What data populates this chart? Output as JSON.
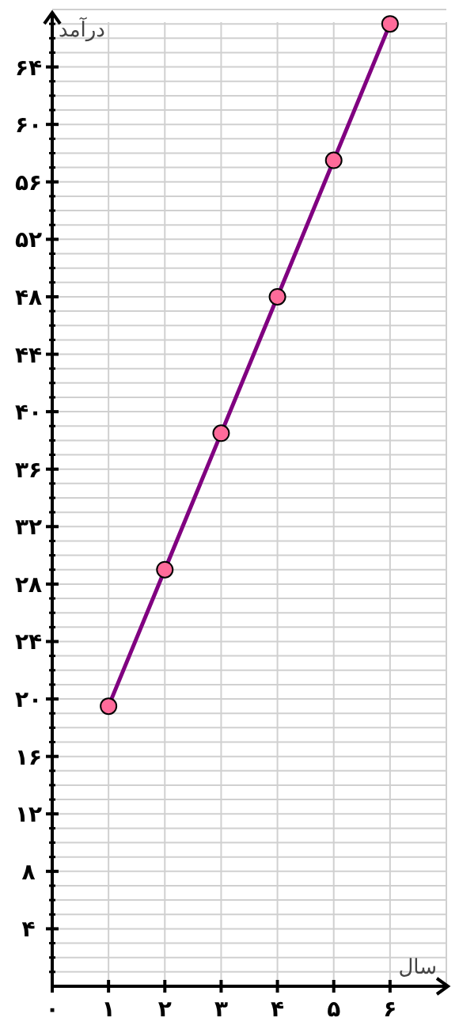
{
  "chart_data": {
    "type": "line",
    "xlabel": "سال",
    "ylabel": "درآمد",
    "x": [
      1,
      2,
      3,
      4,
      5,
      6
    ],
    "series": [
      {
        "color": "#800080",
        "colors": [
          "#ff6b9a",
          "#ff6b9a",
          "#ff6b9a",
          "#ff6b9a",
          "#ff6b9a",
          "#ff6b9a"
        ],
        "values": [
          19.5,
          29,
          38.5,
          48,
          57.5,
          67
        ]
      }
    ],
    "xlim": [
      0,
      7
    ],
    "ylim": [
      0,
      68
    ],
    "xticks": [
      {
        "value": 0,
        "label": "۰"
      },
      {
        "value": 1,
        "label": "۱"
      },
      {
        "value": 2,
        "label": "۲"
      },
      {
        "value": 3,
        "label": "۳"
      },
      {
        "value": 4,
        "label": "۴"
      },
      {
        "value": 5,
        "label": "۵"
      },
      {
        "value": 6,
        "label": "۶"
      }
    ],
    "yticks": [
      {
        "value": 4,
        "label": "۴"
      },
      {
        "value": 8,
        "label": "۸"
      },
      {
        "value": 12,
        "label": "۱۲"
      },
      {
        "value": 16,
        "label": "۱۶"
      },
      {
        "value": 20,
        "label": "۲۰"
      },
      {
        "value": 24,
        "label": "۲۴"
      },
      {
        "value": 28,
        "label": "۲۸"
      },
      {
        "value": 32,
        "label": "۳۲"
      },
      {
        "value": 36,
        "label": "۳۶"
      },
      {
        "value": 40,
        "label": "۴۰"
      },
      {
        "value": 44,
        "label": "۴۴"
      },
      {
        "value": 48,
        "label": "۴۸"
      },
      {
        "value": 52,
        "label": "۵۲"
      },
      {
        "value": 56,
        "label": "۵۶"
      },
      {
        "value": 60,
        "label": "۶۰"
      },
      {
        "value": 64,
        "label": "۶۴"
      }
    ],
    "grid": true,
    "marker": "circle",
    "line_style": "solid"
  }
}
